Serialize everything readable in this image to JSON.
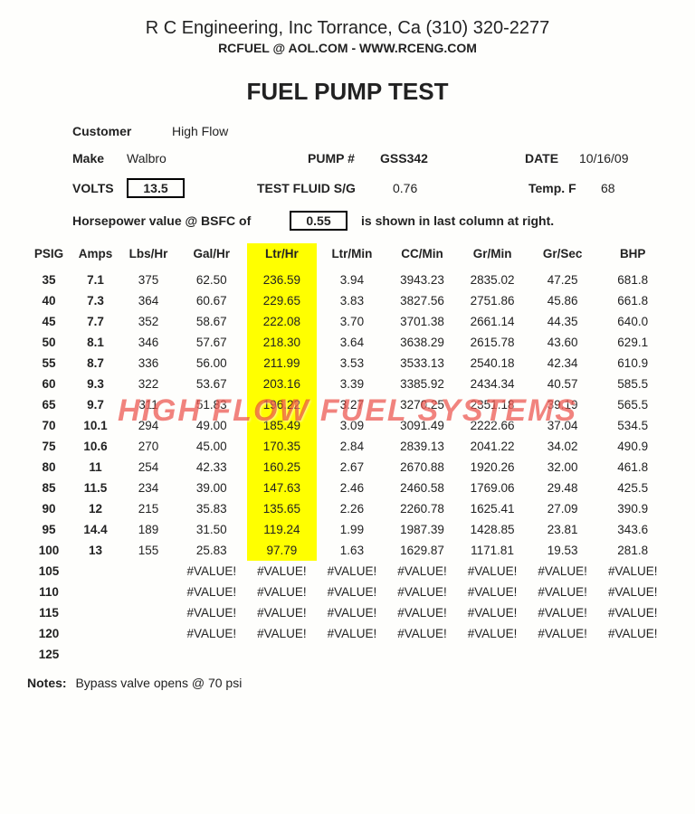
{
  "header": {
    "company": "R C Engineering, Inc  Torrance,  Ca  (310) 320-2277",
    "contact": "RCFUEL @ AOL.COM  -  WWW.RCENG.COM"
  },
  "title": "FUEL PUMP TEST",
  "meta": {
    "customer_label": "Customer",
    "customer": "High Flow",
    "make_label": "Make",
    "make": "Walbro",
    "pump_label": "PUMP #",
    "pump": "GSS342",
    "date_label": "DATE",
    "date": "10/16/09",
    "volts_label": "VOLTS",
    "volts": "13.5",
    "fluid_label": "TEST FLUID  S/G",
    "fluid": "0.76",
    "temp_label": "Temp.  F",
    "temp": "68",
    "bsfc_prefix": "Horsepower value @  BSFC of",
    "bsfc": "0.55",
    "bsfc_suffix": "is shown in last column at right."
  },
  "columns": [
    "PSIG",
    "Amps",
    "Lbs/Hr",
    "Gal/Hr",
    "Ltr/Hr",
    "Ltr/Min",
    "CC/Min",
    "Gr/Min",
    "Gr/Sec",
    "BHP"
  ],
  "highlight_col_index": 4,
  "rows": [
    [
      "35",
      "7.1",
      "375",
      "62.50",
      "236.59",
      "3.94",
      "3943.23",
      "2835.02",
      "47.25",
      "681.8"
    ],
    [
      "40",
      "7.3",
      "364",
      "60.67",
      "229.65",
      "3.83",
      "3827.56",
      "2751.86",
      "45.86",
      "661.8"
    ],
    [
      "45",
      "7.7",
      "352",
      "58.67",
      "222.08",
      "3.70",
      "3701.38",
      "2661.14",
      "44.35",
      "640.0"
    ],
    [
      "50",
      "8.1",
      "346",
      "57.67",
      "218.30",
      "3.64",
      "3638.29",
      "2615.78",
      "43.60",
      "629.1"
    ],
    [
      "55",
      "8.7",
      "336",
      "56.00",
      "211.99",
      "3.53",
      "3533.13",
      "2540.18",
      "42.34",
      "610.9"
    ],
    [
      "60",
      "9.3",
      "322",
      "53.67",
      "203.16",
      "3.39",
      "3385.92",
      "2434.34",
      "40.57",
      "585.5"
    ],
    [
      "65",
      "9.7",
      "311",
      "51.83",
      "196.22",
      "3.27",
      "3270.25",
      "2351.18",
      "39.19",
      "565.5"
    ],
    [
      "70",
      "10.1",
      "294",
      "49.00",
      "185.49",
      "3.09",
      "3091.49",
      "2222.66",
      "37.04",
      "534.5"
    ],
    [
      "75",
      "10.6",
      "270",
      "45.00",
      "170.35",
      "2.84",
      "2839.13",
      "2041.22",
      "34.02",
      "490.9"
    ],
    [
      "80",
      "11",
      "254",
      "42.33",
      "160.25",
      "2.67",
      "2670.88",
      "1920.26",
      "32.00",
      "461.8"
    ],
    [
      "85",
      "11.5",
      "234",
      "39.00",
      "147.63",
      "2.46",
      "2460.58",
      "1769.06",
      "29.48",
      "425.5"
    ],
    [
      "90",
      "12",
      "215",
      "35.83",
      "135.65",
      "2.26",
      "2260.78",
      "1625.41",
      "27.09",
      "390.9"
    ],
    [
      "95",
      "14.4",
      "189",
      "31.50",
      "119.24",
      "1.99",
      "1987.39",
      "1428.85",
      "23.81",
      "343.6"
    ],
    [
      "100",
      "13",
      "155",
      "25.83",
      "97.79",
      "1.63",
      "1629.87",
      "1171.81",
      "19.53",
      "281.8"
    ],
    [
      "105",
      "",
      "",
      "#VALUE!",
      "#VALUE!",
      "#VALUE!",
      "#VALUE!",
      "#VALUE!",
      "#VALUE!",
      "#VALUE!"
    ],
    [
      "110",
      "",
      "",
      "#VALUE!",
      "#VALUE!",
      "#VALUE!",
      "#VALUE!",
      "#VALUE!",
      "#VALUE!",
      "#VALUE!"
    ],
    [
      "115",
      "",
      "",
      "#VALUE!",
      "#VALUE!",
      "#VALUE!",
      "#VALUE!",
      "#VALUE!",
      "#VALUE!",
      "#VALUE!"
    ],
    [
      "120",
      "",
      "",
      "#VALUE!",
      "#VALUE!",
      "#VALUE!",
      "#VALUE!",
      "#VALUE!",
      "#VALUE!",
      "#VALUE!"
    ],
    [
      "125",
      "",
      "",
      "",
      "",
      "",
      "",
      "",
      "",
      ""
    ]
  ],
  "notes_label": "Notes:",
  "notes": "Bypass valve opens @ 70 psi",
  "watermark": "HIGH FLOW FUEL SYSTEMS"
}
